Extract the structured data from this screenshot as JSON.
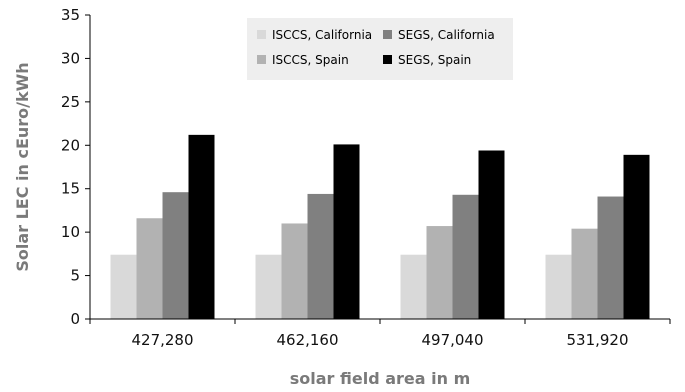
{
  "chart_data": {
    "type": "bar",
    "categories": [
      "427,280",
      "462,160",
      "497,040",
      "531,920"
    ],
    "series": [
      {
        "name": "ISCCS, California",
        "color": "#d9d9d9",
        "values": [
          7.4,
          7.4,
          7.4,
          7.4
        ]
      },
      {
        "name": "ISCCS, Spain",
        "color": "#b2b2b2",
        "values": [
          11.6,
          11.0,
          10.7,
          10.4
        ]
      },
      {
        "name": "SEGS, California",
        "color": "#808080",
        "values": [
          14.6,
          14.4,
          14.3,
          14.1
        ]
      },
      {
        "name": "SEGS, Spain",
        "color": "#000000",
        "values": [
          21.2,
          20.1,
          19.4,
          18.9
        ]
      }
    ],
    "xlabel": "solar field area in m",
    "ylabel": "Solar LEC in cEuro/kWh",
    "ylim": [
      0,
      35
    ],
    "yticks": [
      0,
      5,
      10,
      15,
      20,
      25,
      30,
      35
    ],
    "legend": {
      "placement": "top-center",
      "order": [
        "ISCCS, California",
        "SEGS, California",
        "ISCCS, Spain",
        "SEGS, Spain"
      ],
      "background": "#eeeeee"
    },
    "grid": false
  }
}
